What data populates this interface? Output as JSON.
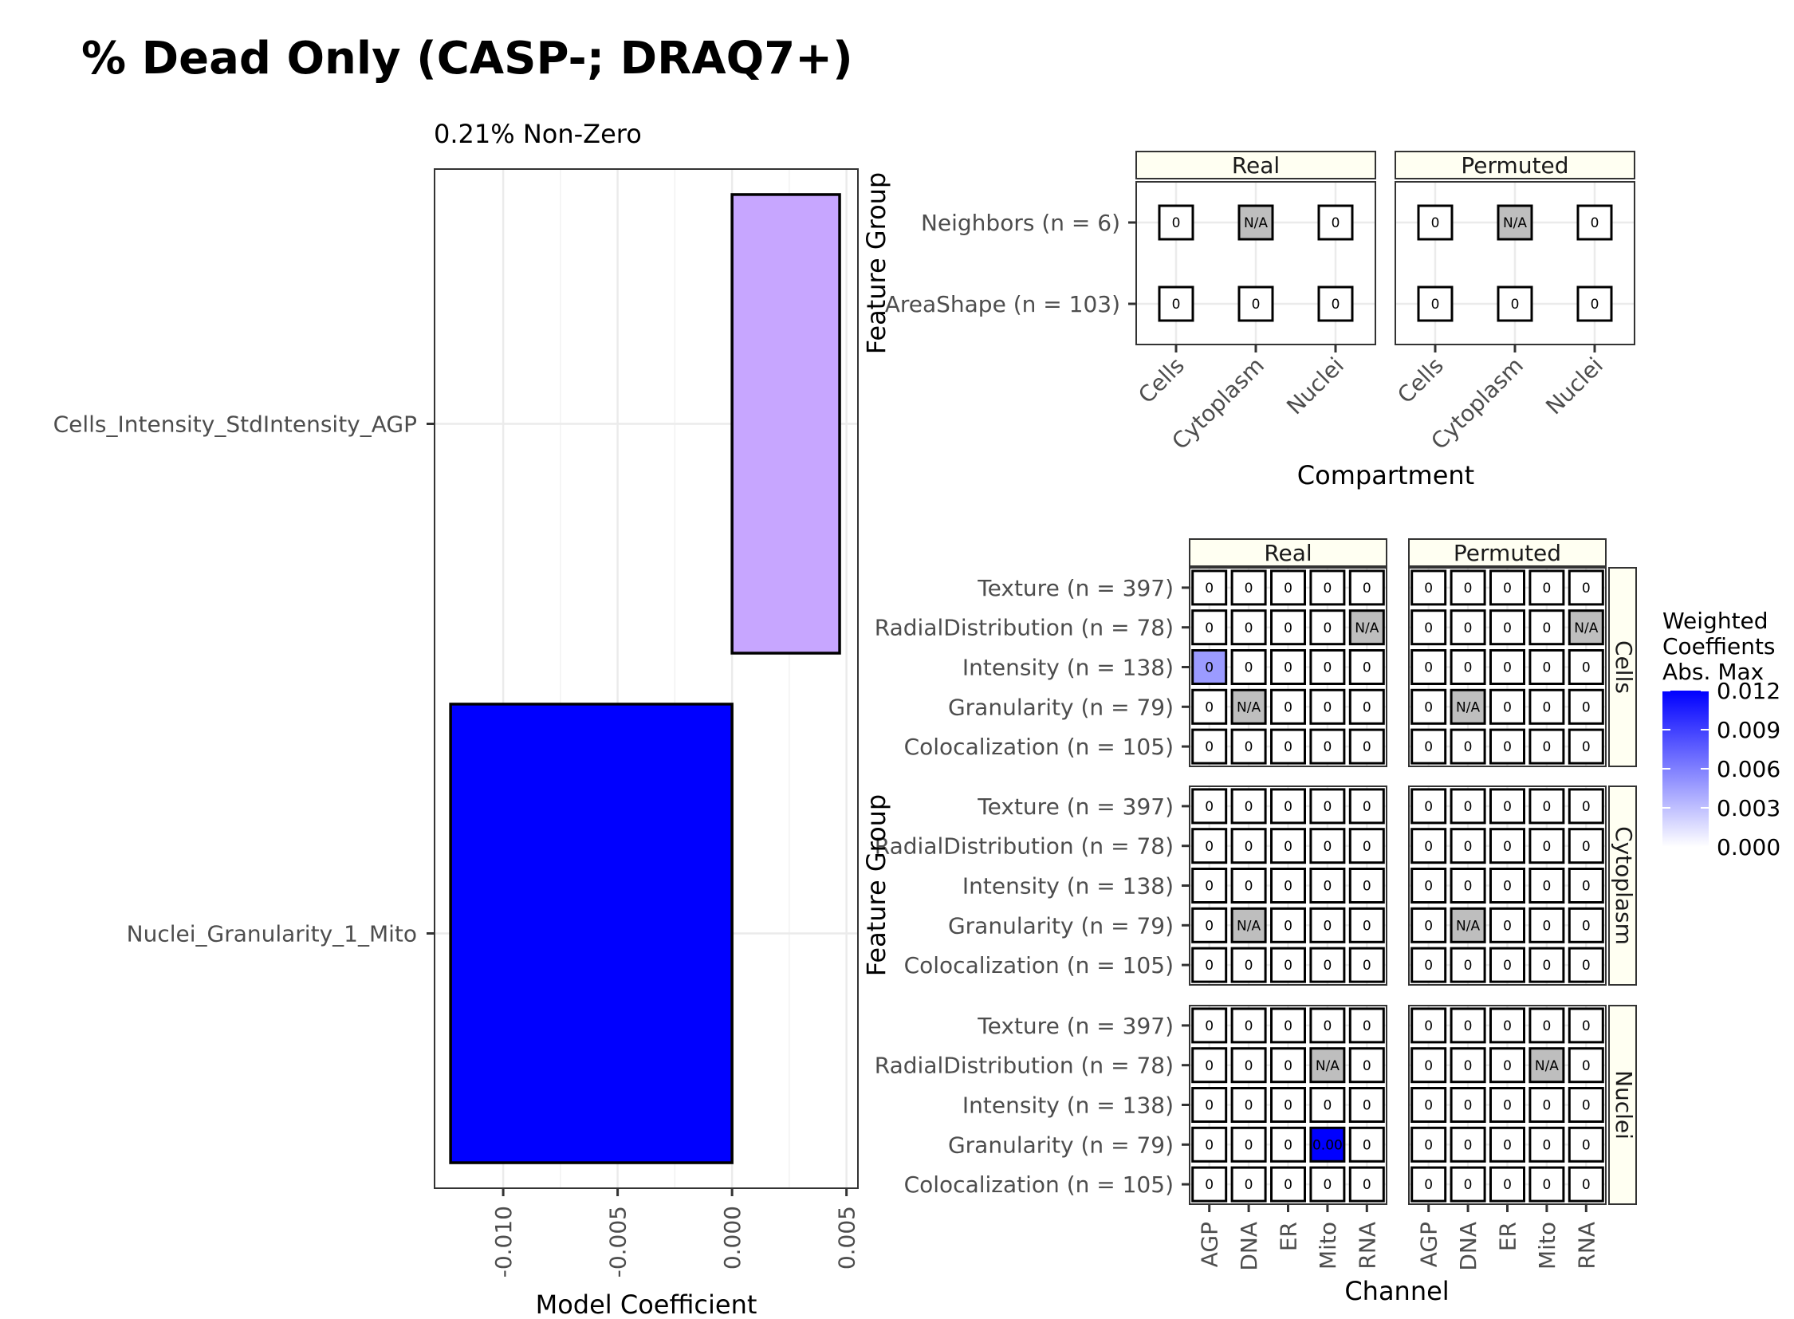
{
  "title": "% Dead Only (CASP-; DRAQ7+)",
  "subtitle": "0.21% Non-Zero",
  "chart_data": [
    {
      "type": "bar",
      "orientation": "horizontal",
      "categories": [
        "Cells_Intensity_StdIntensity_AGP",
        "Nuclei_Granularity_1_Mito"
      ],
      "values": [
        0.0047,
        -0.0123
      ],
      "colors": [
        "#c7a6ff",
        "#0000ff"
      ],
      "xlabel": "Model Coefficient",
      "ylabel": "",
      "xlim": [
        -0.013,
        0.0055
      ],
      "xticks": [
        -0.01,
        -0.005,
        0.0,
        0.005
      ],
      "xtick_labels": [
        "-0.010",
        "-0.005",
        "0.000",
        "0.005"
      ],
      "grid": true
    },
    {
      "type": "heatmap",
      "facets": [
        "Real",
        "Permuted"
      ],
      "x_categories": [
        "Cells",
        "Cytoplasm",
        "Nuclei"
      ],
      "y_categories": [
        "AreaShape (n = 103)",
        "Neighbors (n = 6)"
      ],
      "xlabel": "Compartment",
      "ylabel": "Feature Group",
      "cells": {
        "Real": [
          [
            "0",
            "0",
            "0"
          ],
          [
            "0",
            "N/A",
            "0"
          ]
        ],
        "Permuted": [
          [
            "0",
            "0",
            "0"
          ],
          [
            "0",
            "N/A",
            "0"
          ]
        ]
      }
    },
    {
      "type": "heatmap",
      "facets": [
        "Real",
        "Permuted"
      ],
      "row_facets": [
        "Cells",
        "Cytoplasm",
        "Nuclei"
      ],
      "x_categories": [
        "AGP",
        "DNA",
        "ER",
        "Mito",
        "RNA"
      ],
      "y_categories": [
        "Colocalization (n = 105)",
        "Granularity (n = 79)",
        "Intensity (n = 138)",
        "RadialDistribution (n = 78)",
        "Texture (n = 397)"
      ],
      "xlabel": "Channel",
      "ylabel": "Feature Group",
      "legend": {
        "title_lines": [
          "Weighted",
          "Coeffients",
          "Abs. Max"
        ],
        "range": [
          0.0,
          0.012
        ],
        "tick_labels": [
          "0.012",
          "0.009",
          "0.006",
          "0.003",
          "0.000"
        ],
        "color_low": "#ffffff",
        "color_high": "#0000ff",
        "placement": "right"
      },
      "cells": {
        "Cells": {
          "Real": [
            [
              "0",
              "0",
              "0",
              "0",
              "0"
            ],
            [
              "0",
              "N/A",
              "0",
              "0",
              "0"
            ],
            [
              "0",
              "0",
              "0",
              "0",
              "0"
            ],
            [
              "0",
              "0",
              "0",
              "0",
              "N/A"
            ],
            [
              "0",
              "0",
              "0",
              "0",
              "0"
            ]
          ],
          "Permuted": [
            [
              "0",
              "0",
              "0",
              "0",
              "0"
            ],
            [
              "0",
              "N/A",
              "0",
              "0",
              "0"
            ],
            [
              "0",
              "0",
              "0",
              "0",
              "0"
            ],
            [
              "0",
              "0",
              "0",
              "0",
              "N/A"
            ],
            [
              "0",
              "0",
              "0",
              "0",
              "0"
            ]
          ]
        },
        "Cytoplasm": {
          "Real": [
            [
              "0",
              "0",
              "0",
              "0",
              "0"
            ],
            [
              "0",
              "N/A",
              "0",
              "0",
              "0"
            ],
            [
              "0",
              "0",
              "0",
              "0",
              "0"
            ],
            [
              "0",
              "0",
              "0",
              "0",
              "0"
            ],
            [
              "0",
              "0",
              "0",
              "0",
              "0"
            ]
          ],
          "Permuted": [
            [
              "0",
              "0",
              "0",
              "0",
              "0"
            ],
            [
              "0",
              "N/A",
              "0",
              "0",
              "0"
            ],
            [
              "0",
              "0",
              "0",
              "0",
              "0"
            ],
            [
              "0",
              "0",
              "0",
              "0",
              "0"
            ],
            [
              "0",
              "0",
              "0",
              "0",
              "0"
            ]
          ]
        },
        "Nuclei": {
          "Real": [
            [
              "0",
              "0",
              "0",
              "0",
              "0"
            ],
            [
              "0",
              "0",
              "0",
              "0.00",
              "0"
            ],
            [
              "0",
              "0",
              "0",
              "0",
              "0"
            ],
            [
              "0",
              "0",
              "0",
              "N/A",
              "0"
            ],
            [
              "0",
              "0",
              "0",
              "0",
              "0"
            ]
          ],
          "Permuted": [
            [
              "0",
              "0",
              "0",
              "0",
              "0"
            ],
            [
              "0",
              "0",
              "0",
              "0",
              "0"
            ],
            [
              "0",
              "0",
              "0",
              "0",
              "0"
            ],
            [
              "0",
              "0",
              "0",
              "N/A",
              "0"
            ],
            [
              "0",
              "0",
              "0",
              "0",
              "0"
            ]
          ]
        }
      },
      "highlights": [
        {
          "row_facet": "Cells",
          "facet": "Real",
          "x": "AGP",
          "y": "Intensity (n = 138)",
          "value": 0.0047
        },
        {
          "row_facet": "Nuclei",
          "facet": "Real",
          "x": "Mito",
          "y": "Granularity (n = 79)",
          "value": 0.0123
        }
      ]
    }
  ]
}
